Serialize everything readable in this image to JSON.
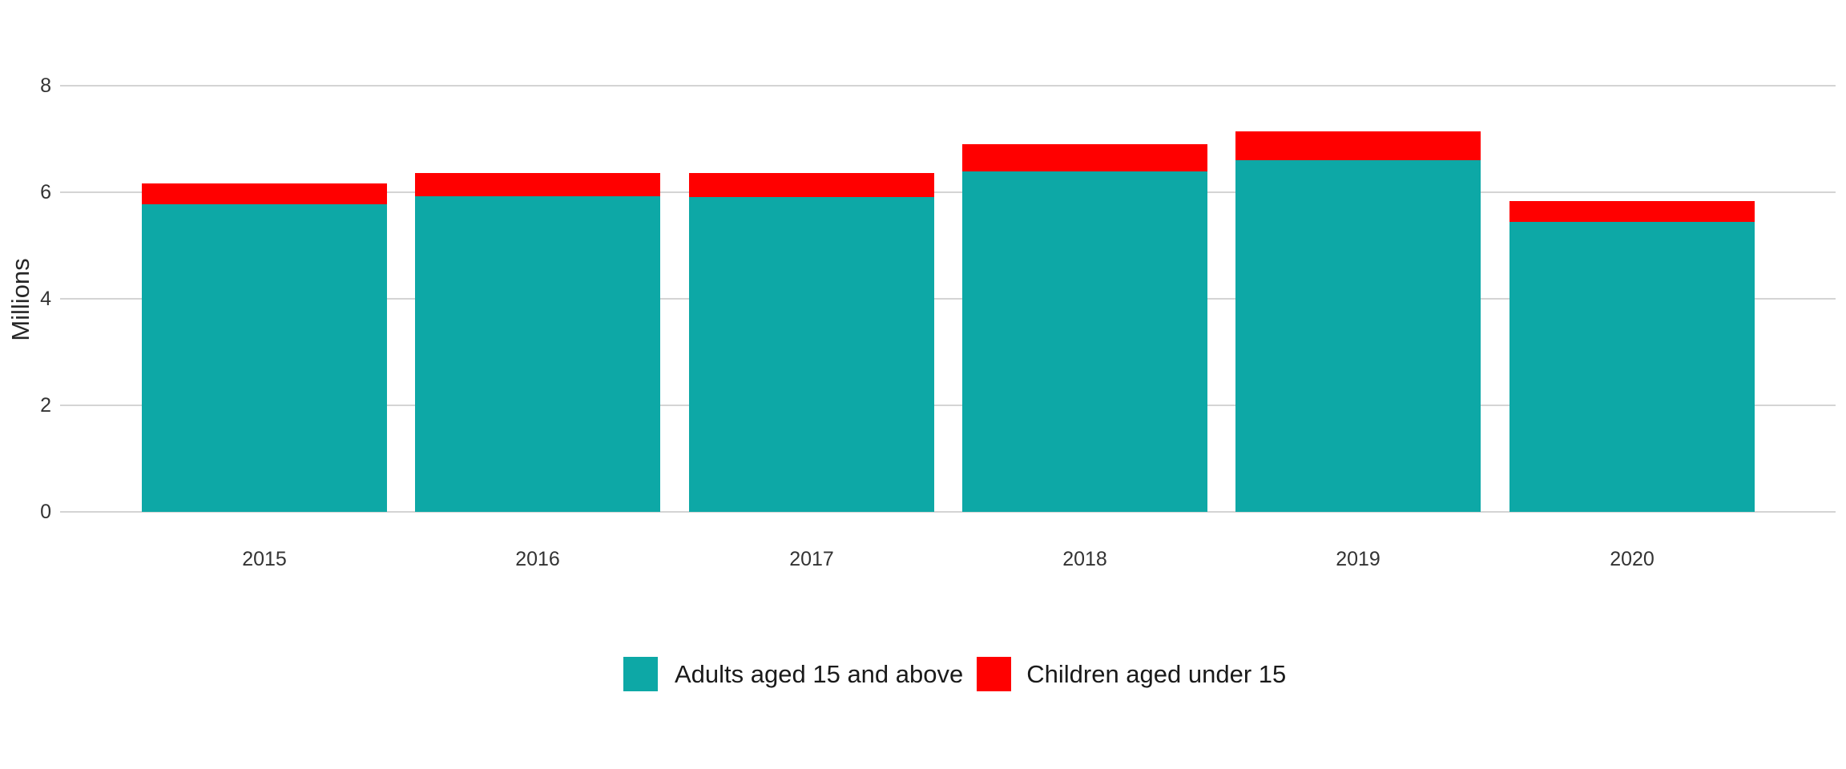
{
  "chart_data": {
    "type": "bar",
    "stacked": true,
    "title": "",
    "xlabel": "",
    "ylabel": "Millions",
    "categories": [
      "2015",
      "2016",
      "2017",
      "2018",
      "2019",
      "2020"
    ],
    "series": [
      {
        "name": "Adults aged 15 and above",
        "color": "#0DA8A6",
        "values": [
          5.78,
          5.93,
          5.92,
          6.4,
          6.61,
          5.45
        ]
      },
      {
        "name": "Children aged under 15",
        "color": "#FF0000",
        "values": [
          0.39,
          0.44,
          0.44,
          0.51,
          0.54,
          0.39
        ]
      }
    ],
    "ylim": [
      0,
      8
    ],
    "yticks": [
      0,
      2,
      4,
      6,
      8
    ],
    "grid": true,
    "legend_position": "bottom-center"
  },
  "colors": {
    "background": "#FFFFFF",
    "gridline": "#D4D4D4",
    "axis_text": "#333333",
    "axis_title_text": "#262626",
    "legend_text": "#1A1A1A",
    "series_adults": "#0DA8A6",
    "series_children": "#FF0000"
  }
}
